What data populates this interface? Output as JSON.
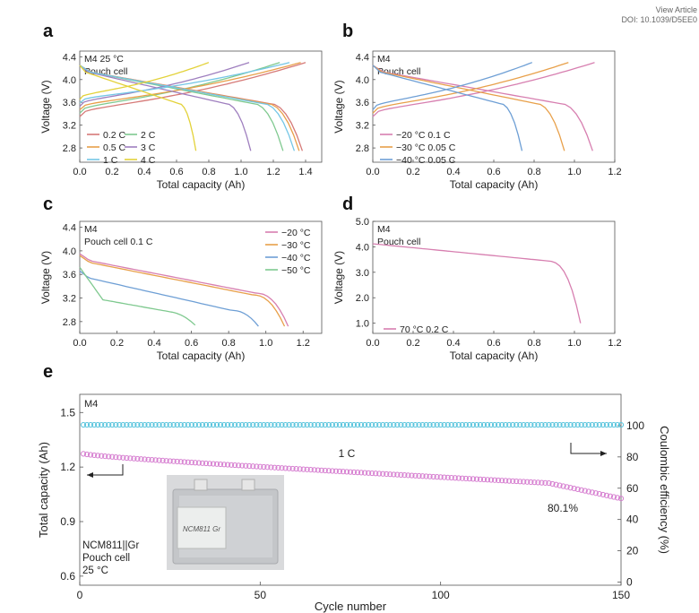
{
  "header": {
    "view_label": "View Article",
    "doi": "DOI: 10.1039/D5EE0"
  },
  "colors": {
    "c_pink": "#d77fb0",
    "c_violet": "#9f7fbf",
    "c_green": "#7fc98f",
    "c_cyan": "#74c6e6",
    "c_yellow": "#e3d23a",
    "c_orange": "#e8a04a",
    "c_red": "#d67a78",
    "c_blue": "#6e9fd5",
    "ce_color": "#55c3dc",
    "cap_color": "#d67ed0"
  },
  "panels": [
    {
      "letter": "a",
      "title_lines": [
        "M4 25 °C",
        "Pouch cell"
      ],
      "xlabel": "Total capacity (Ah)",
      "ylabel": "Voltage (V)",
      "xlim": [
        0,
        1.5
      ],
      "ylim": [
        2.55,
        4.5
      ],
      "xticks": [
        "0.0",
        "0.2",
        "0.4",
        "0.6",
        "0.8",
        "1.0",
        "1.2",
        "1.4"
      ],
      "yticks": [
        "2.8",
        "3.2",
        "3.6",
        "4.0",
        "4.4"
      ],
      "legend_cols": 2,
      "series": [
        {
          "name": "0.2 C",
          "color": "#d67a78",
          "charge_end": 1.4,
          "discharge_end": 1.38
        },
        {
          "name": "2 C",
          "color": "#7fc98f",
          "charge_end": 1.24,
          "discharge_end": 1.26
        },
        {
          "name": "0.5 C",
          "color": "#e8a04a",
          "charge_end": 1.37,
          "discharge_end": 1.36
        },
        {
          "name": "3 C",
          "color": "#9f7fbf",
          "charge_end": 1.05,
          "discharge_end": 1.06
        },
        {
          "name": "1 C",
          "color": "#74c6e6",
          "charge_end": 1.3,
          "discharge_end": 1.33
        },
        {
          "name": "4 C",
          "color": "#e3d23a",
          "charge_end": 0.8,
          "discharge_end": 0.72
        }
      ]
    },
    {
      "letter": "b",
      "title_lines": [
        "M4",
        "Pouch cell"
      ],
      "xlabel": "Total capacity (Ah)",
      "ylabel": "Voltage (V)",
      "xlim": [
        0,
        1.2
      ],
      "ylim": [
        2.55,
        4.5
      ],
      "xticks": [
        "0.0",
        "0.2",
        "0.4",
        "0.6",
        "0.8",
        "1.0",
        "1.2"
      ],
      "yticks": [
        "2.8",
        "3.2",
        "3.6",
        "4.0",
        "4.4"
      ],
      "legend_cols": 1,
      "series": [
        {
          "name": "−20 °C 0.1 C",
          "color": "#d77fb0",
          "charge_end": 1.1,
          "discharge_end": 1.09
        },
        {
          "name": "−30 °C 0.05 C",
          "color": "#e8a04a",
          "charge_end": 0.97,
          "discharge_end": 0.95
        },
        {
          "name": "−40 °C 0.05 C",
          "color": "#6e9fd5",
          "charge_end": 0.79,
          "discharge_end": 0.74
        }
      ]
    },
    {
      "letter": "c",
      "title_lines": [
        "M4",
        "Pouch cell 0.1 C"
      ],
      "xlabel": "Total capacity (Ah)",
      "ylabel": "Voltage (V)",
      "xlim": [
        0,
        1.3
      ],
      "ylim": [
        2.6,
        4.5
      ],
      "xticks": [
        "0.0",
        "0.2",
        "0.4",
        "0.6",
        "0.8",
        "1.0",
        "1.2"
      ],
      "yticks": [
        "2.8",
        "3.2",
        "3.6",
        "4.0",
        "4.4"
      ],
      "legend_cols": 1,
      "series": [
        {
          "name": "−20 °C",
          "color": "#d77fb0",
          "discharge_end": 1.12,
          "v0": 3.95
        },
        {
          "name": "−30 °C",
          "color": "#e8a04a",
          "discharge_end": 1.1,
          "v0": 3.92
        },
        {
          "name": "−40 °C",
          "color": "#6e9fd5",
          "discharge_end": 0.96,
          "v0": 3.66
        },
        {
          "name": "−50 °C",
          "color": "#7fc98f",
          "discharge_end": 0.62,
          "v0": 3.72
        }
      ]
    },
    {
      "letter": "d",
      "title_lines": [
        "M4",
        "Pouch cell"
      ],
      "xlabel": "Total capacity (Ah)",
      "ylabel": "Voltage (V)",
      "xlim": [
        0,
        1.2
      ],
      "ylim": [
        0.6,
        5.0
      ],
      "xticks": [
        "0.0",
        "0.2",
        "0.4",
        "0.6",
        "0.8",
        "1.0",
        "1.2"
      ],
      "yticks": [
        "1.0",
        "2.0",
        "3.0",
        "4.0",
        "5.0"
      ],
      "legend_cols": 1,
      "series": [
        {
          "name": "70 °C 0.2 C",
          "color": "#d77fb0",
          "discharge_end": 1.03,
          "v0": 4.12
        }
      ]
    }
  ],
  "panel_e": {
    "letter": "e",
    "top_label": "M4",
    "xlabel": "Cycle number",
    "ylabel_left": "Total capacity (Ah)",
    "ylabel_right": "Coulombic efficiency (%)",
    "xlim": [
      0,
      150
    ],
    "ylim_left": [
      0.55,
      1.6
    ],
    "ylim_right": [
      -2,
      120
    ],
    "xticks": [
      "0",
      "50",
      "100",
      "150"
    ],
    "yticks_left": [
      "0.6",
      "0.9",
      "1.2",
      "1.5"
    ],
    "yticks_right": [
      "0",
      "20",
      "40",
      "60",
      "80",
      "100"
    ],
    "rate_label": "1 C",
    "retention_label": "80.1%",
    "info_lines": [
      "NCM811||Gr",
      "Pouch cell",
      "25 °C"
    ],
    "photo_label": "NCM811 Gr",
    "capacity_start": 1.28,
    "capacity_end": 1.02,
    "ce_value": 100.5
  },
  "chart_data": [
    {
      "type": "line",
      "panel": "a",
      "xlabel": "Total capacity (Ah)",
      "ylabel": "Voltage (V)",
      "series": [
        {
          "name": "0.2 C",
          "discharge_capacity": 1.38
        },
        {
          "name": "0.5 C",
          "discharge_capacity": 1.36
        },
        {
          "name": "1 C",
          "discharge_capacity": 1.33
        },
        {
          "name": "2 C",
          "discharge_capacity": 1.26
        },
        {
          "name": "3 C",
          "discharge_capacity": 1.06
        },
        {
          "name": "4 C",
          "discharge_capacity": 0.72
        }
      ]
    },
    {
      "type": "line",
      "panel": "b",
      "xlabel": "Total capacity (Ah)",
      "ylabel": "Voltage (V)",
      "series": [
        {
          "name": "−20 °C 0.1 C",
          "discharge_capacity": 1.09
        },
        {
          "name": "−30 °C 0.05 C",
          "discharge_capacity": 0.95
        },
        {
          "name": "−40 °C 0.05 C",
          "discharge_capacity": 0.74
        }
      ]
    },
    {
      "type": "line",
      "panel": "c",
      "xlabel": "Total capacity (Ah)",
      "ylabel": "Voltage (V)",
      "series": [
        {
          "name": "−20 °C",
          "discharge_capacity": 1.12
        },
        {
          "name": "−30 °C",
          "discharge_capacity": 1.1
        },
        {
          "name": "−40 °C",
          "discharge_capacity": 0.96
        },
        {
          "name": "−50 °C",
          "discharge_capacity": 0.62
        }
      ]
    },
    {
      "type": "line",
      "panel": "d",
      "xlabel": "Total capacity (Ah)",
      "ylabel": "Voltage (V)",
      "series": [
        {
          "name": "70 °C 0.2 C",
          "discharge_capacity": 1.03
        }
      ]
    },
    {
      "type": "scatter",
      "panel": "e",
      "xlabel": "Cycle number",
      "series": [
        {
          "name": "Total capacity (Ah)",
          "start": 1.28,
          "end": 1.02
        },
        {
          "name": "Coulombic efficiency (%)",
          "value": 100.5
        }
      ]
    }
  ]
}
